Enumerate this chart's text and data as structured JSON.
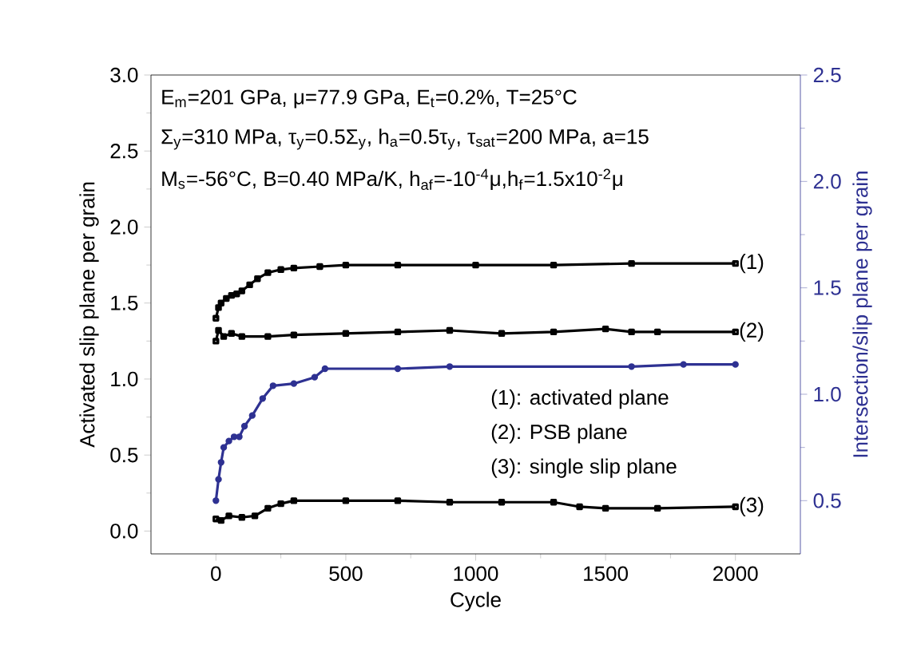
{
  "chart_data": {
    "type": "line",
    "xlabel": "Cycle",
    "ylabel": "Activated slip plane per grain",
    "y2label": "Intersection/slip plane per grain",
    "xlim": [
      -250,
      2250
    ],
    "xticks": [
      0,
      500,
      1000,
      1500,
      2000
    ],
    "ylim": [
      -0.15,
      3.0
    ],
    "yticks": [
      {
        "value": 0,
        "label": "0.0"
      },
      0.5,
      {
        "value": 1,
        "label": "1.0"
      },
      1.5,
      {
        "value": 2,
        "label": "2.0"
      },
      2.5,
      {
        "value": 3,
        "label": "3.0"
      }
    ],
    "y2lim": [
      0.25,
      2.5
    ],
    "y2ticks": [
      0.5,
      {
        "value": 1,
        "label": "1.0"
      },
      1.5,
      {
        "value": 2,
        "label": "2.0"
      },
      2.5
    ],
    "marker": "square",
    "annotations": [
      "E$_{m}$=201 GPa, μ=77.9 GPa, E$_{t}$=0.2%, T=25°C",
      "Σ$_{y}$=310 MPa, τ$_{y}$=0.5Σ$_{y}$, h$_{a}$=0.5τ$_{y}$, τ$_{sat}$=200 MPa, a=15",
      "M$_{s}$=-56°C, B=0.40 MPa/K, h$_{af}$=-10$^{-4}$μ,h$_{f}$=1.5x10$^{-2}$μ",
      "(1): activated plane",
      "(2): PSB plane",
      "(3): single slip plane"
    ],
    "series": [
      {
        "name": "(1)",
        "color": "#000000",
        "x": [
          0,
          10,
          20,
          40,
          60,
          80,
          100,
          130,
          160,
          200,
          250,
          300,
          400,
          500,
          700,
          1000,
          1300,
          1600,
          2000
        ],
        "values": [
          1.4,
          1.47,
          1.5,
          1.53,
          1.55,
          1.56,
          1.58,
          1.62,
          1.66,
          1.7,
          1.72,
          1.73,
          1.74,
          1.75,
          1.75,
          1.75,
          1.75,
          1.76,
          1.76
        ]
      },
      {
        "name": "(2)",
        "color": "#000000",
        "x": [
          0,
          10,
          30,
          60,
          100,
          200,
          300,
          500,
          700,
          900,
          1100,
          1300,
          1500,
          1600,
          1700,
          2000
        ],
        "values": [
          1.25,
          1.32,
          1.28,
          1.3,
          1.28,
          1.28,
          1.29,
          1.3,
          1.31,
          1.32,
          1.3,
          1.31,
          1.33,
          1.31,
          1.31,
          1.31
        ]
      },
      {
        "name": "(3)",
        "color": "#000000",
        "x": [
          0,
          20,
          50,
          100,
          150,
          200,
          250,
          300,
          500,
          700,
          900,
          1100,
          1300,
          1400,
          1500,
          1700,
          2000
        ],
        "values": [
          0.08,
          0.07,
          0.1,
          0.09,
          0.1,
          0.15,
          0.18,
          0.2,
          0.2,
          0.2,
          0.19,
          0.19,
          0.19,
          0.16,
          0.15,
          0.15,
          0.16
        ]
      },
      {
        "color": "#2e3192",
        "axis": "y2",
        "marker": "circle",
        "x": [
          0,
          10,
          20,
          30,
          50,
          70,
          90,
          110,
          140,
          180,
          220,
          300,
          380,
          420,
          700,
          900,
          1600,
          1800,
          2000
        ],
        "values": [
          0.5,
          0.6,
          0.68,
          0.75,
          0.78,
          0.8,
          0.8,
          0.85,
          0.9,
          0.98,
          1.04,
          1.05,
          1.08,
          1.12,
          1.12,
          1.13,
          1.13,
          1.14,
          1.14
        ]
      }
    ]
  }
}
